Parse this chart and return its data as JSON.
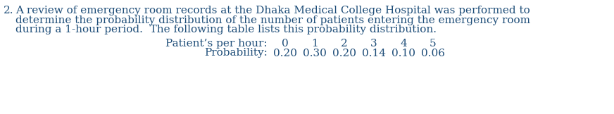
{
  "background_color": "#ffffff",
  "text_color": "#1f4e79",
  "font_family": "serif",
  "paragraph_number": "2.",
  "line1": "A review of emergency room records at the Dhaka Medical College Hospital was performed to",
  "line2": "determine the probability distribution of the number of patients entering the emergency room",
  "line3": "during a 1-hour period.  The following table lists this probability distribution.",
  "row1_label": "Patient’s per hour:",
  "row1_values": [
    "0",
    "1",
    "2",
    "3",
    "4",
    "5"
  ],
  "row2_label": "Probability:",
  "row2_values": [
    "0.20",
    "0.30",
    "0.20",
    "0.14",
    "0.10",
    "0.06"
  ],
  "para_fontsize": 11.0,
  "table_fontsize": 11.0,
  "fig_width": 8.72,
  "fig_height": 1.62,
  "dpi": 100
}
